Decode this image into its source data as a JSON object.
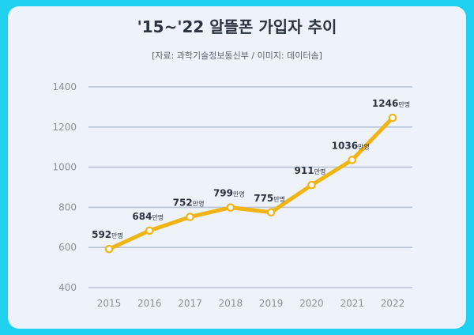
{
  "chart_data": {
    "type": "line",
    "title": "'15~'22 알뜰폰 가입자 추이",
    "subtitle": "[자료: 과학기술정보통신부 / 이미지: 데이터솜]",
    "x": [
      "2015",
      "2016",
      "2017",
      "2018",
      "2019",
      "2020",
      "2021",
      "2022"
    ],
    "values": [
      592,
      684,
      752,
      799,
      775,
      911,
      1036,
      1246
    ],
    "unit": "만명",
    "yticks": [
      "400",
      "600",
      "800",
      "1000",
      "1200",
      "1400"
    ],
    "ylim": [
      400,
      1400
    ],
    "grid": true,
    "colors": {
      "line": "#f0b414",
      "grid": "#b9c3d3",
      "background": "#eef3fb"
    }
  }
}
